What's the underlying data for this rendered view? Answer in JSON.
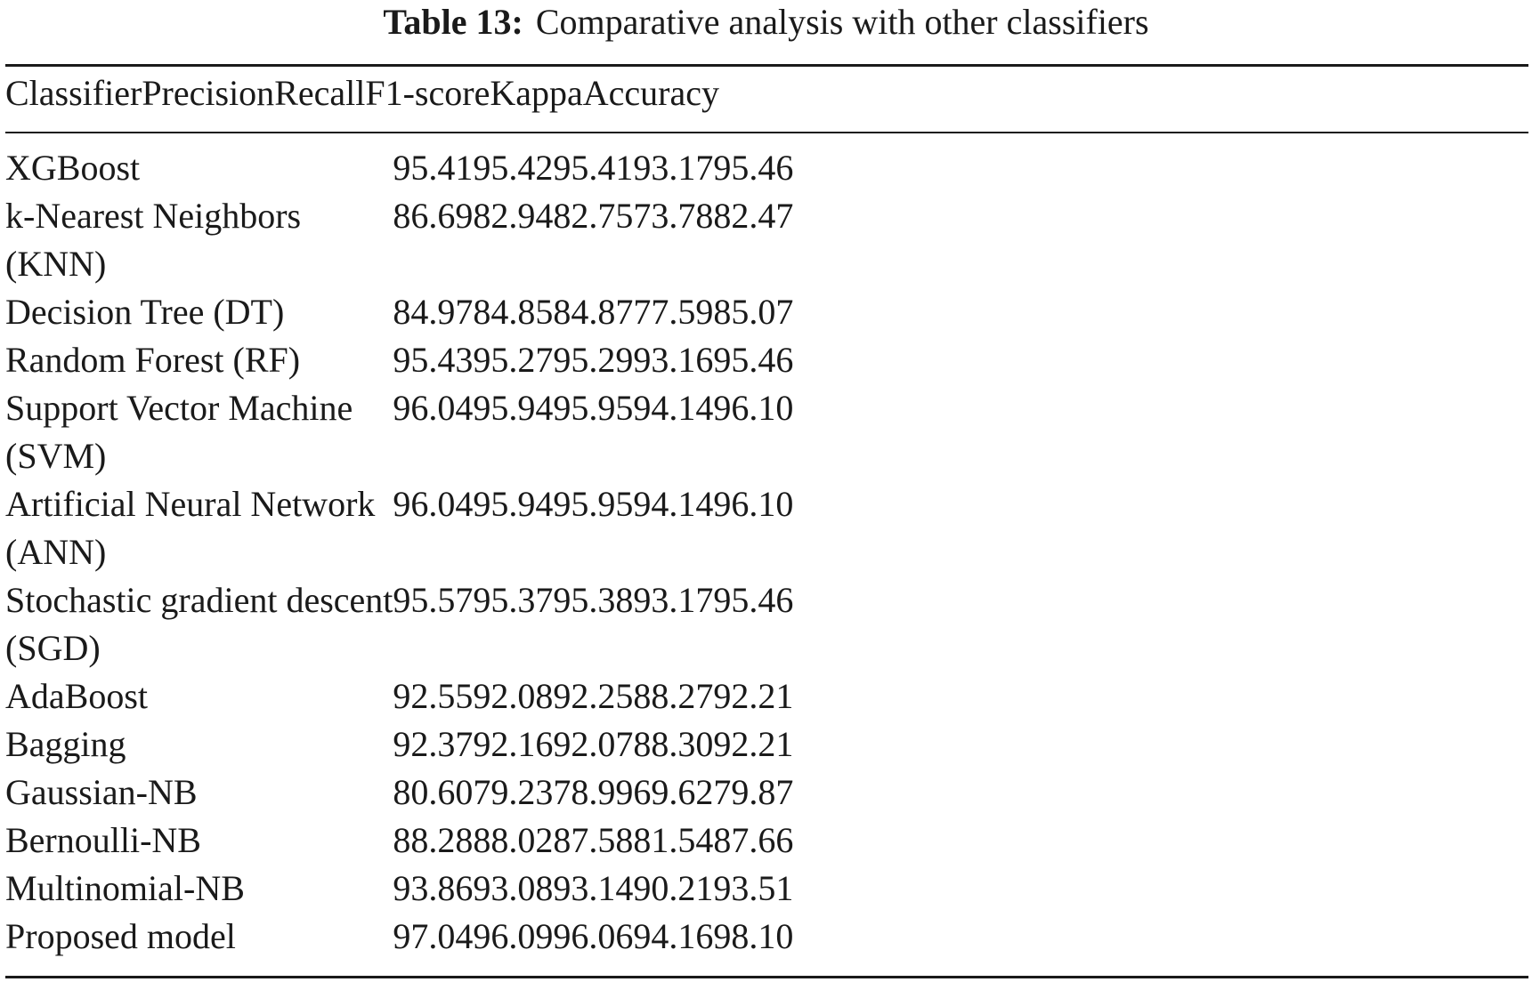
{
  "caption": {
    "label": "Table 13:",
    "text": "Comparative analysis with other classifiers"
  },
  "columns": [
    "Classifier",
    "Precision",
    "Recall",
    "F1-score",
    "Kappa",
    "Accuracy"
  ],
  "rows": [
    {
      "classifier": [
        "XGBoost"
      ],
      "precision": "95.41",
      "recall": "95.42",
      "f1": "95.41",
      "kappa": "93.17",
      "accuracy": "95.46"
    },
    {
      "classifier": [
        "k-Nearest Neighbors",
        "(KNN)"
      ],
      "precision": "86.69",
      "recall": "82.94",
      "f1": "82.75",
      "kappa": "73.78",
      "accuracy": "82.47"
    },
    {
      "classifier": [
        "Decision Tree (DT)"
      ],
      "precision": "84.97",
      "recall": "84.85",
      "f1": "84.87",
      "kappa": "77.59",
      "accuracy": "85.07"
    },
    {
      "classifier": [
        "Random Forest (RF)"
      ],
      "precision": "95.43",
      "recall": "95.27",
      "f1": "95.29",
      "kappa": "93.16",
      "accuracy": "95.46"
    },
    {
      "classifier": [
        "Support Vector Machine",
        "(SVM)"
      ],
      "precision": "96.04",
      "recall": "95.94",
      "f1": "95.95",
      "kappa": "94.14",
      "accuracy": "96.10"
    },
    {
      "classifier": [
        "Artificial Neural Network",
        "(ANN)"
      ],
      "precision": "96.04",
      "recall": "95.94",
      "f1": "95.95",
      "kappa": "94.14",
      "accuracy": "96.10"
    },
    {
      "classifier": [
        "Stochastic gradient descent",
        "(SGD)"
      ],
      "precision": "95.57",
      "recall": "95.37",
      "f1": "95.38",
      "kappa": "93.17",
      "accuracy": "95.46"
    },
    {
      "classifier": [
        "AdaBoost"
      ],
      "precision": "92.55",
      "recall": "92.08",
      "f1": "92.25",
      "kappa": "88.27",
      "accuracy": "92.21"
    },
    {
      "classifier": [
        "Bagging"
      ],
      "precision": "92.37",
      "recall": "92.16",
      "f1": "92.07",
      "kappa": "88.30",
      "accuracy": "92.21"
    },
    {
      "classifier": [
        "Gaussian-NB"
      ],
      "precision": "80.60",
      "recall": "79.23",
      "f1": "78.99",
      "kappa": "69.62",
      "accuracy": "79.87"
    },
    {
      "classifier": [
        "Bernoulli-NB"
      ],
      "precision": "88.28",
      "recall": "88.02",
      "f1": "87.58",
      "kappa": "81.54",
      "accuracy": "87.66"
    },
    {
      "classifier": [
        "Multinomial-NB"
      ],
      "precision": "93.86",
      "recall": "93.08",
      "f1": "93.14",
      "kappa": "90.21",
      "accuracy": "93.51"
    },
    {
      "classifier": [
        "Proposed model"
      ],
      "precision": "97.04",
      "recall": "96.09",
      "f1": "96.06",
      "kappa": "94.16",
      "accuracy": "98.10"
    }
  ]
}
